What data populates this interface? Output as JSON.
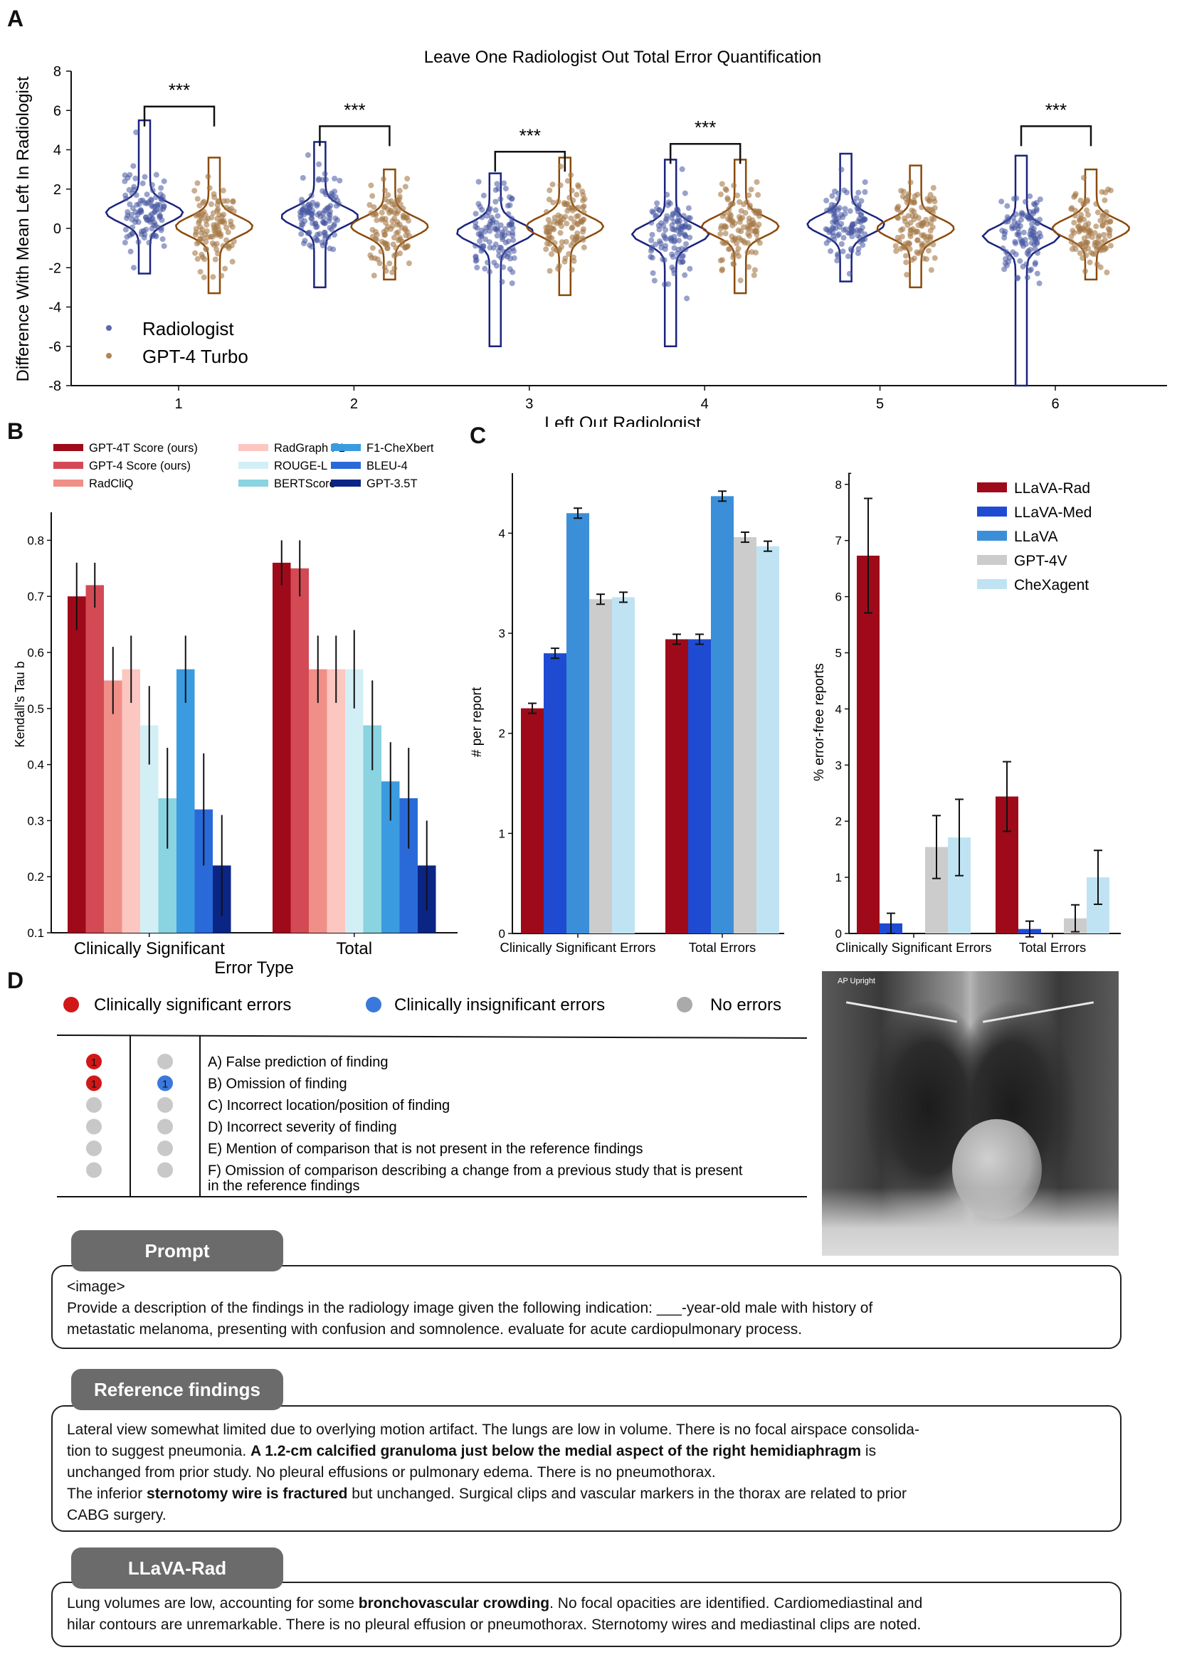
{
  "panels": {
    "a": "A",
    "b": "B",
    "c": "C",
    "d": "D"
  },
  "colors": {
    "radiologist": "#1a237e",
    "gpt4": "#8b4a0a",
    "red": "#9e0a1a",
    "blue_dark": "#1e4bd2",
    "blue": "#3b8fd9",
    "gray": "#cccccc",
    "light_blue": "#bfe3f3"
  },
  "chart_data": [
    {
      "type": "violin",
      "title": "Leave One Radiologist Out Total Error Quantification",
      "xlabel": "Left Out Radiologist",
      "ylabel": "Difference With Mean Left In Radiologist",
      "categories": [
        "1",
        "2",
        "3",
        "4",
        "5",
        "6"
      ],
      "ylim": [
        -8,
        8
      ],
      "yticks": [
        "8",
        "6",
        "4",
        "2",
        "0",
        "-2",
        "-4",
        "-6",
        "-8"
      ],
      "legend": {
        "placement": "bottom-left"
      },
      "series": [
        {
          "name": "Radiologist",
          "color": "#1a237e",
          "means": [
            0.8,
            0.6,
            -0.2,
            -0.3,
            0.2,
            -0.4
          ],
          "ranges": [
            [
              -2.3,
              5.5
            ],
            [
              -3.0,
              4.4
            ],
            [
              -6.0,
              2.8
            ],
            [
              -6.0,
              3.5
            ],
            [
              -2.7,
              3.8
            ],
            [
              -8.0,
              3.7
            ]
          ]
        },
        {
          "name": "GPT-4 Turbo",
          "color": "#8b4a0a",
          "means": [
            0.1,
            0.1,
            0.1,
            0.1,
            0.0,
            0.0
          ],
          "ranges": [
            [
              -3.3,
              3.6
            ],
            [
              -2.6,
              3.0
            ],
            [
              -3.4,
              3.6
            ],
            [
              -3.3,
              3.5
            ],
            [
              -3.0,
              3.2
            ],
            [
              -2.6,
              3.0
            ]
          ]
        }
      ],
      "significance": [
        {
          "group": "1",
          "label": "***",
          "y": 6.2
        },
        {
          "group": "2",
          "label": "***",
          "y": 5.2
        },
        {
          "group": "3",
          "label": "***",
          "y": 3.9
        },
        {
          "group": "4",
          "label": "***",
          "y": 4.3
        },
        {
          "group": "6",
          "label": "***",
          "y": 5.2
        }
      ]
    },
    {
      "type": "bar",
      "xlabel": "Error Type",
      "ylabel": "Kendall's Tau b",
      "categories": [
        "Clinically Significant",
        "Total"
      ],
      "ylim": [
        0.1,
        0.85
      ],
      "yticks": [
        "0.8",
        "0.7",
        "0.6",
        "0.5",
        "0.4",
        "0.3",
        "0.2",
        "0.1"
      ],
      "legend": {
        "placement": "top"
      },
      "series": [
        {
          "name": "GPT-4T Score (ours)",
          "color": "#9e0a1a",
          "values": [
            0.7,
            0.76
          ],
          "err": [
            0.06,
            0.04
          ]
        },
        {
          "name": "GPT-4 Score (ours)",
          "color": "#d34a55",
          "values": [
            0.72,
            0.75
          ],
          "err": [
            0.04,
            0.05
          ]
        },
        {
          "name": "RadCliQ",
          "color": "#f08f88",
          "values": [
            0.55,
            0.57
          ],
          "err": [
            0.06,
            0.06
          ]
        },
        {
          "name": "RadGraph F1",
          "color": "#fcc7c1",
          "values": [
            0.57,
            0.57
          ],
          "err": [
            0.06,
            0.06
          ]
        },
        {
          "name": "ROUGE-L",
          "color": "#d3eff6",
          "values": [
            0.47,
            0.57
          ],
          "err": [
            0.07,
            0.07
          ]
        },
        {
          "name": "BERTScore",
          "color": "#8ad3e0",
          "values": [
            0.34,
            0.47
          ],
          "err": [
            0.09,
            0.08
          ]
        },
        {
          "name": "F1-CheXbert",
          "color": "#3b9be0",
          "values": [
            0.57,
            0.37
          ],
          "err": [
            0.06,
            0.07
          ]
        },
        {
          "name": "BLEU-4",
          "color": "#2a6ad8",
          "values": [
            0.32,
            0.34
          ],
          "err": [
            0.1,
            0.09
          ]
        },
        {
          "name": "GPT-3.5T",
          "color": "#0b2585",
          "values": [
            0.22,
            0.22
          ],
          "err": [
            0.09,
            0.08
          ]
        }
      ]
    },
    {
      "type": "bar",
      "ylabel": "# per report",
      "categories": [
        "Clinically Significant Errors",
        "Total Errors"
      ],
      "ylim": [
        0,
        4.6
      ],
      "yticks": [
        "4",
        "3",
        "2",
        "1",
        "0"
      ],
      "series": [
        {
          "name": "LLaVA-Rad",
          "color": "#9e0a1a",
          "values": [
            2.25,
            2.94
          ],
          "err": [
            0.05,
            0.05
          ]
        },
        {
          "name": "LLaVA-Med",
          "color": "#1e4bd2",
          "values": [
            2.8,
            2.94
          ],
          "err": [
            0.05,
            0.05
          ]
        },
        {
          "name": "LLaVA",
          "color": "#3b8fd9",
          "values": [
            4.2,
            4.37
          ],
          "err": [
            0.05,
            0.05
          ]
        },
        {
          "name": "GPT-4V",
          "color": "#cccccc",
          "values": [
            3.34,
            3.96
          ],
          "err": [
            0.05,
            0.05
          ]
        },
        {
          "name": "CheXagent",
          "color": "#bfe3f3",
          "values": [
            3.36,
            3.87
          ],
          "err": [
            0.05,
            0.05
          ]
        }
      ]
    },
    {
      "type": "bar",
      "ylabel": "% error-free reports",
      "categories": [
        "Clinically Significant Errors",
        "Total Errors"
      ],
      "ylim": [
        0,
        8.2
      ],
      "yticks": [
        "8",
        "7",
        "6",
        "5",
        "4",
        "3",
        "2",
        "1",
        "0"
      ],
      "legend": {
        "placement": "top-right"
      },
      "annotation": "-",
      "series": [
        {
          "name": "LLaVA-Rad",
          "color": "#9e0a1a",
          "values": [
            6.73,
            2.44
          ],
          "err": [
            1.02,
            0.62
          ]
        },
        {
          "name": "LLaVA-Med",
          "color": "#1e4bd2",
          "values": [
            0.18,
            0.08
          ],
          "err": [
            0.18,
            0.14
          ]
        },
        {
          "name": "LLaVA",
          "color": "#3b8fd9",
          "values": [
            0.0,
            0.0
          ],
          "err": [
            0,
            0
          ]
        },
        {
          "name": "GPT-4V",
          "color": "#cccccc",
          "values": [
            1.54,
            0.27
          ],
          "err": [
            0.56,
            0.24
          ]
        },
        {
          "name": "CheXagent",
          "color": "#bfe3f3",
          "values": [
            1.71,
            1.0
          ],
          "err": [
            0.68,
            0.48
          ]
        }
      ]
    }
  ],
  "panel_d": {
    "legend": [
      "Clinically significant errors",
      "Clinically insignificant errors",
      "No errors"
    ],
    "error_rows": [
      {
        "label": "A) False prediction of finding",
        "sig": "1",
        "insig": ""
      },
      {
        "label": "B) Omission of finding",
        "sig": "1",
        "insig": "1"
      },
      {
        "label": "C) Incorrect location/position of finding",
        "sig": "",
        "insig": ""
      },
      {
        "label": "D) Incorrect severity of finding",
        "sig": "",
        "insig": ""
      },
      {
        "label": "E) Mention of comparison that is not present in the reference findings",
        "sig": "",
        "insig": ""
      },
      {
        "label": "F) Omission of comparison describing a change from a previous study that is present",
        "sig": "",
        "insig": ""
      }
    ],
    "error_row_f_cont": "in the reference findings",
    "xray_label": "AP  Upright",
    "prompt_tab": "Prompt",
    "prompt_line1": "<image>",
    "prompt_line2": "Provide a description of the findings in the radiology image given the following indication: ___-year-old male with history of",
    "prompt_line3": "metastatic melanoma, presenting  with confusion and somnolence.  evaluate for acute cardiopulmonary process.",
    "ref_tab": "Reference findings",
    "ref_l1": "Lateral view somewhat limited due to overlying motion artifact. The lungs are low in volume.  There is no focal airspace consolida-",
    "ref_l2a": "tion to suggest pneumonia.  ",
    "ref_l2b": "A 1.2-cm calcified granuloma just below the medial aspect of the right hemidiaphragm",
    "ref_l2c": " is",
    "ref_l3": "unchanged from prior study.  No pleural effusions or pulmonary edema. There is no pneumothorax.",
    "ref_l4a": "The inferior ",
    "ref_l4b": "sternotomy wire is fractured",
    "ref_l4c": " but unchanged. Surgical clips and vascular markers in the thorax are related to prior",
    "ref_l5": "CABG surgery.",
    "rad_tab": "LLaVA-Rad",
    "rad_l1a": "Lung volumes are low, accounting for some ",
    "rad_l1b": "bronchovascular crowding",
    "rad_l1c": ". No focal opacities are identified.  Cardiomediastinal and",
    "rad_l2": "hilar contours are unremarkable.  There is no pleural effusion or pneumothorax.  Sternotomy wires and mediastinal clips are noted."
  }
}
